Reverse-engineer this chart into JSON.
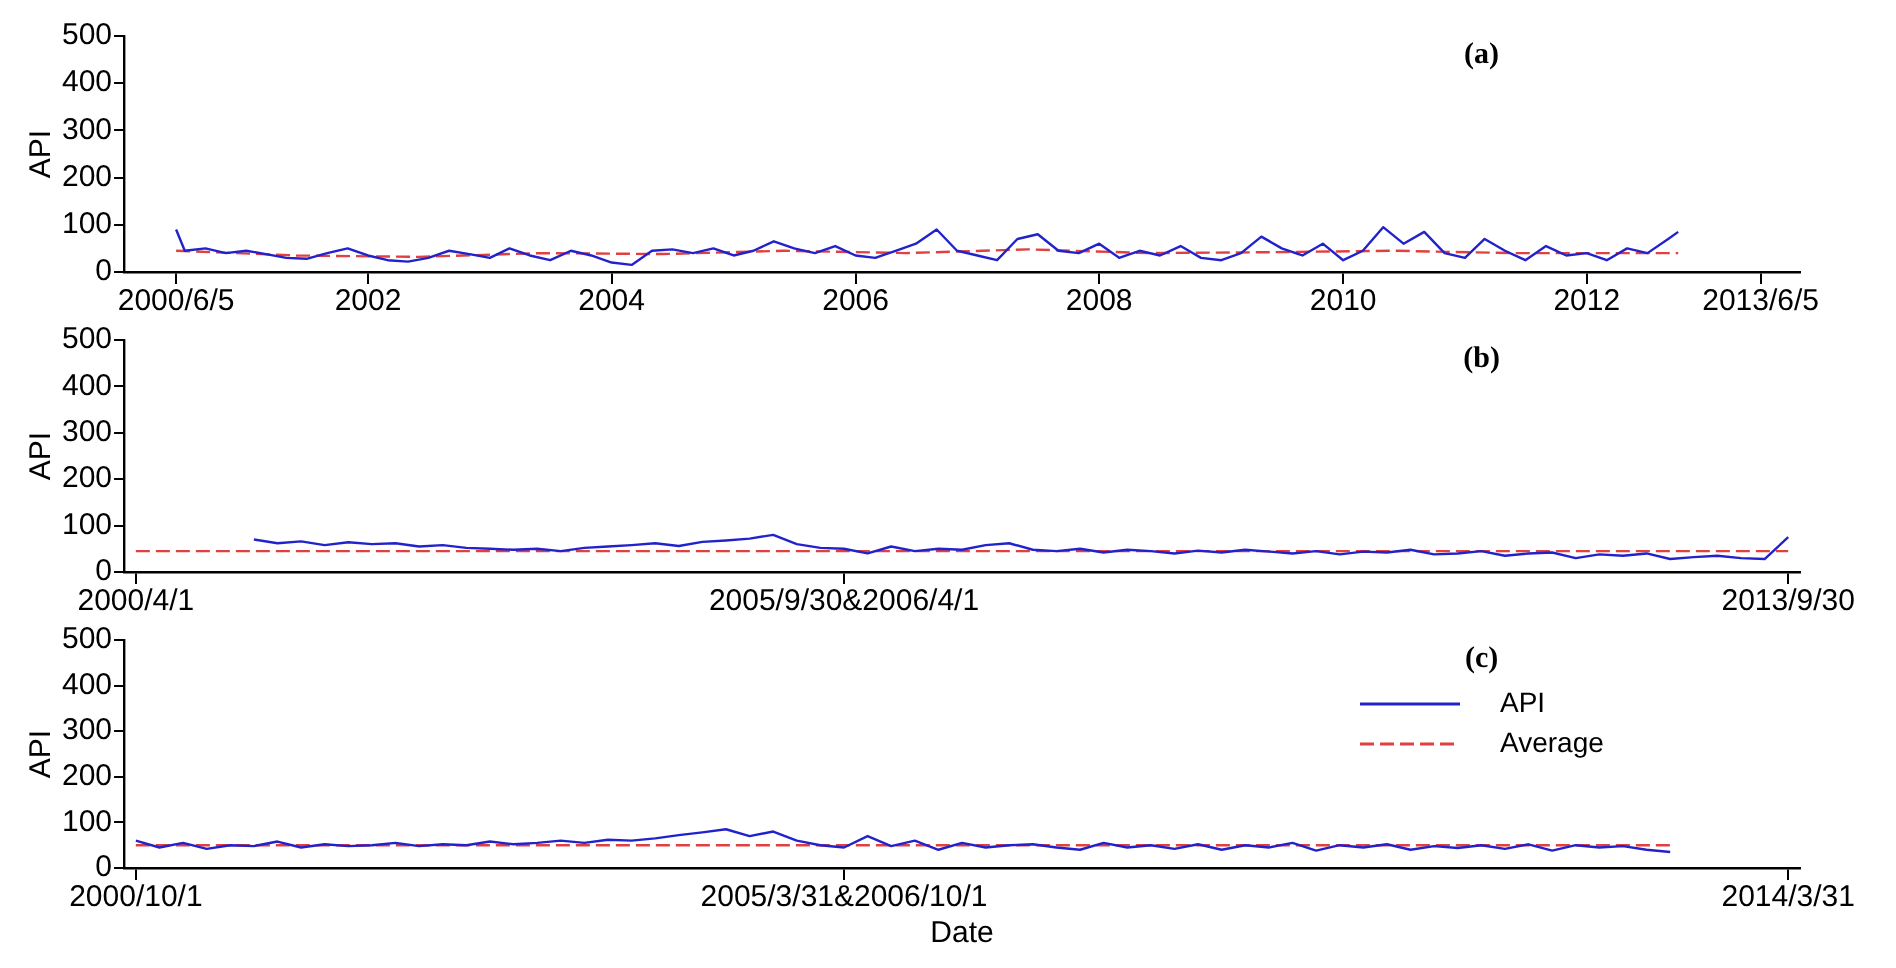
{
  "chart_data": [
    {
      "type": "line",
      "title": "(a)",
      "ylabel": "API",
      "grid": false,
      "legend": false,
      "marker": "none",
      "xlim": [
        "2000-01-01",
        "2013-10-01"
      ],
      "xticks": [
        {
          "value": "2000-06-05",
          "label": "2000/6/5"
        },
        "2002",
        "2004",
        "2006",
        "2008",
        "2010",
        "2012",
        {
          "value": "2013-06-05",
          "label": "2013/6/5"
        }
      ],
      "ylim": [
        0,
        500
      ],
      "yticks": [
        0,
        100,
        200,
        300,
        400,
        500
      ],
      "series": [
        {
          "color": "#2222cc",
          "line_style": "solid",
          "x": [
            "2000-06-05",
            "2000-07",
            "2000-09",
            "2000-11",
            "2001-01",
            "2001-03",
            "2001-05",
            "2001-07",
            "2001-09",
            "2001-11",
            "2002-01",
            "2002-03",
            "2002-05",
            "2002-07",
            "2002-09",
            "2002-11",
            "2003-01",
            "2003-03",
            "2003-05",
            "2003-07",
            "2003-09",
            "2003-11",
            "2004-01",
            "2004-03",
            "2004-05",
            "2004-07",
            "2004-09",
            "2004-11",
            "2005-01",
            "2005-03",
            "2005-05",
            "2005-07",
            "2005-09",
            "2005-11",
            "2006-01",
            "2006-03",
            "2006-05",
            "2006-07",
            "2006-09",
            "2006-11",
            "2007-01",
            "2007-03",
            "2007-05",
            "2007-07",
            "2007-09",
            "2007-11",
            "2008-01",
            "2008-03",
            "2008-05",
            "2008-07",
            "2008-09",
            "2008-11",
            "2009-01",
            "2009-03",
            "2009-05",
            "2009-07",
            "2009-09",
            "2009-11",
            "2010-01",
            "2010-03",
            "2010-05",
            "2010-07",
            "2010-09",
            "2010-11",
            "2011-01",
            "2011-03",
            "2011-05",
            "2011-07",
            "2011-09",
            "2011-11",
            "2012-01",
            "2012-03",
            "2012-05",
            "2012-07",
            "2012-09",
            "2012-10"
          ],
          "values": [
            90,
            45,
            50,
            40,
            45,
            38,
            30,
            28,
            40,
            50,
            35,
            25,
            22,
            30,
            45,
            38,
            30,
            50,
            35,
            25,
            45,
            35,
            20,
            15,
            45,
            48,
            40,
            50,
            35,
            45,
            65,
            50,
            40,
            55,
            35,
            30,
            45,
            60,
            90,
            45,
            35,
            25,
            70,
            80,
            45,
            40,
            60,
            30,
            45,
            35,
            55,
            30,
            25,
            40,
            75,
            50,
            35,
            60,
            25,
            45,
            95,
            60,
            85,
            40,
            30,
            70,
            45,
            25,
            55,
            35,
            40,
            25,
            50,
            40,
            70,
            85
          ]
        },
        {
          "color": "#e04040",
          "line_style": "dashed",
          "x": [
            "2000-06-05",
            "2001-06",
            "2002-06",
            "2003-06",
            "2004-06",
            "2005-06",
            "2006-06",
            "2007-06",
            "2008-06",
            "2009-06",
            "2010-06",
            "2011-06",
            "2012-10"
          ],
          "values": [
            45,
            35,
            32,
            40,
            38,
            45,
            40,
            48,
            40,
            42,
            45,
            40,
            40
          ]
        }
      ]
    },
    {
      "type": "line",
      "title": "(b)",
      "ylabel": "API",
      "grid": false,
      "legend": false,
      "marker": "none",
      "categories": [
        "2000/4/1",
        null,
        null,
        null,
        null,
        null,
        null,
        null,
        null,
        null,
        null,
        null,
        null,
        null,
        null,
        null,
        null,
        null,
        null,
        null,
        null,
        null,
        null,
        null,
        null,
        null,
        null,
        null,
        null,
        null,
        "2005/9/30&2006/4/1",
        null,
        null,
        null,
        null,
        null,
        null,
        null,
        null,
        null,
        null,
        null,
        null,
        null,
        null,
        null,
        null,
        null,
        null,
        null,
        null,
        null,
        null,
        null,
        null,
        null,
        null,
        null,
        null,
        null,
        null,
        null,
        null,
        null,
        null,
        null,
        null,
        null,
        null,
        null,
        "2013/9/30"
      ],
      "ylim": [
        0,
        500
      ],
      "yticks": [
        0,
        100,
        200,
        300,
        400,
        500
      ],
      "series": [
        {
          "color": "#2222cc",
          "line_style": "solid",
          "values": [
            null,
            null,
            null,
            null,
            null,
            70,
            62,
            66,
            58,
            64,
            60,
            62,
            55,
            58,
            52,
            50,
            48,
            50,
            45,
            52,
            55,
            58,
            62,
            56,
            65,
            68,
            72,
            80,
            60,
            52,
            50,
            40,
            55,
            45,
            50,
            48,
            58,
            62,
            48,
            45,
            50,
            42,
            48,
            45,
            40,
            46,
            42,
            48,
            44,
            40,
            45,
            38,
            44,
            42,
            48,
            38,
            40,
            45,
            35,
            40,
            42,
            30,
            38,
            35,
            40,
            28,
            32,
            35,
            30,
            28,
            75
          ]
        },
        {
          "color": "#e04040",
          "line_style": "dashed",
          "values": [
            45,
            45,
            45,
            45,
            45,
            45,
            45,
            45,
            45,
            45,
            45,
            45,
            45,
            45,
            45,
            45,
            45,
            45,
            45,
            45,
            45,
            45,
            45,
            45,
            45,
            45,
            45,
            45,
            45,
            45,
            45,
            45,
            45,
            45,
            45,
            45,
            45,
            45,
            45,
            45,
            45,
            45,
            45,
            45,
            45,
            45,
            45,
            45,
            45,
            45,
            45,
            45,
            45,
            45,
            45,
            45,
            45,
            45,
            45,
            45,
            45,
            45,
            45,
            45,
            45,
            45,
            45,
            45,
            45,
            45,
            45
          ]
        }
      ]
    },
    {
      "type": "line",
      "title": "(c)",
      "ylabel": "API",
      "xlabel": "Date",
      "grid": false,
      "legend": "top right",
      "marker": "none",
      "categories": [
        "2000/10/1",
        null,
        null,
        null,
        null,
        null,
        null,
        null,
        null,
        null,
        null,
        null,
        null,
        null,
        null,
        null,
        null,
        null,
        null,
        null,
        null,
        null,
        null,
        null,
        null,
        null,
        null,
        null,
        null,
        null,
        "2005/3/31&2006/10/1",
        null,
        null,
        null,
        null,
        null,
        null,
        null,
        null,
        null,
        null,
        null,
        null,
        null,
        null,
        null,
        null,
        null,
        null,
        null,
        null,
        null,
        null,
        null,
        null,
        null,
        null,
        null,
        null,
        null,
        null,
        null,
        null,
        null,
        null,
        null,
        null,
        null,
        null,
        null,
        "2014/3/31"
      ],
      "ylim": [
        0,
        500
      ],
      "yticks": [
        0,
        100,
        200,
        300,
        400,
        500
      ],
      "series": [
        {
          "name": "API",
          "color": "#2222cc",
          "line_style": "solid",
          "values": [
            60,
            45,
            55,
            42,
            50,
            48,
            58,
            45,
            52,
            48,
            50,
            55,
            48,
            52,
            50,
            58,
            52,
            55,
            60,
            55,
            62,
            60,
            65,
            72,
            78,
            85,
            70,
            80,
            60,
            50,
            45,
            70,
            48,
            60,
            40,
            55,
            45,
            50,
            52,
            45,
            40,
            55,
            45,
            50,
            42,
            52,
            40,
            50,
            45,
            55,
            38,
            50,
            45,
            52,
            40,
            48,
            44,
            50,
            42,
            52,
            38,
            50,
            45,
            48,
            40,
            35,
            null,
            null,
            null,
            null,
            null
          ]
        },
        {
          "name": "Average",
          "color": "#e04040",
          "line_style": "dashed",
          "values": [
            50,
            50,
            50,
            50,
            50,
            50,
            50,
            50,
            50,
            50,
            50,
            50,
            50,
            50,
            50,
            50,
            50,
            50,
            50,
            50,
            50,
            50,
            50,
            50,
            50,
            50,
            50,
            50,
            50,
            50,
            50,
            50,
            50,
            50,
            50,
            50,
            50,
            50,
            50,
            50,
            50,
            50,
            50,
            50,
            50,
            50,
            50,
            50,
            50,
            50,
            50,
            50,
            50,
            50,
            50,
            50,
            50,
            50,
            50,
            50,
            50,
            50,
            50,
            50,
            50,
            50,
            null,
            null,
            null,
            null,
            null
          ]
        }
      ]
    }
  ]
}
